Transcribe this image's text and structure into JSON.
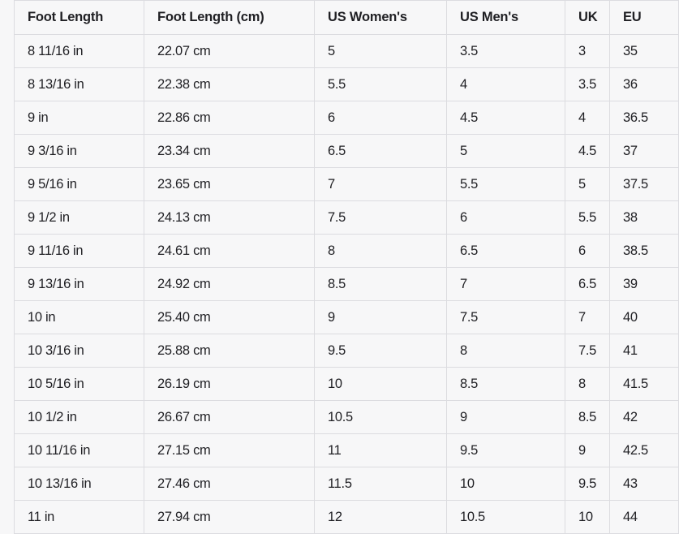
{
  "table": {
    "headers": [
      "Foot Length",
      "Foot Length (cm)",
      "US Women's",
      "US Men's",
      "UK",
      "EU"
    ],
    "rows": [
      [
        "8 11/16 in",
        "22.07 cm",
        "5",
        "3.5",
        "3",
        "35"
      ],
      [
        "8 13/16 in",
        "22.38 cm",
        "5.5",
        "4",
        "3.5",
        "36"
      ],
      [
        "9 in",
        "22.86 cm",
        "6",
        "4.5",
        "4",
        "36.5"
      ],
      [
        "9 3/16 in",
        "23.34 cm",
        "6.5",
        "5",
        "4.5",
        "37"
      ],
      [
        "9 5/16 in",
        "23.65 cm",
        "7",
        "5.5",
        "5",
        "37.5"
      ],
      [
        "9 1/2 in",
        "24.13 cm",
        "7.5",
        "6",
        "5.5",
        "38"
      ],
      [
        "9 11/16 in",
        "24.61 cm",
        "8",
        "6.5",
        "6",
        "38.5"
      ],
      [
        "9 13/16 in",
        "24.92 cm",
        "8.5",
        "7",
        "6.5",
        "39"
      ],
      [
        "10 in",
        "25.40 cm",
        "9",
        "7.5",
        "7",
        "40"
      ],
      [
        "10 3/16 in",
        "25.88 cm",
        "9.5",
        "8",
        "7.5",
        "41"
      ],
      [
        "10 5/16 in",
        "26.19 cm",
        "10",
        "8.5",
        "8",
        "41.5"
      ],
      [
        "10 1/2 in",
        "26.67 cm",
        "10.5",
        "9",
        "8.5",
        "42"
      ],
      [
        "10 11/16 in",
        "27.15 cm",
        "11",
        "9.5",
        "9",
        "42.5"
      ],
      [
        "10 13/16 in",
        "27.46 cm",
        "11.5",
        "10",
        "9.5",
        "43"
      ],
      [
        "11 in",
        "27.94 cm",
        "12",
        "10.5",
        "10",
        "44"
      ]
    ]
  }
}
